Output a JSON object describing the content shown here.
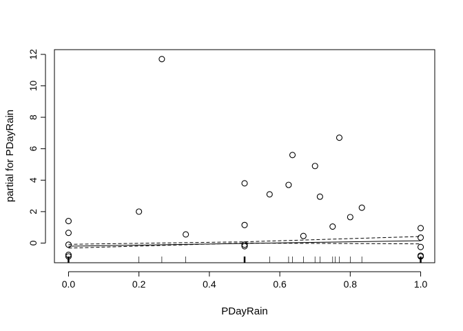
{
  "chart_data": {
    "type": "scatter",
    "title": "",
    "xlabel": "PDayRain",
    "ylabel": "partial for PDayRain",
    "xlim": [
      -0.04,
      1.04
    ],
    "ylim": [
      -1.25,
      12.3
    ],
    "xticks": [
      0.0,
      0.2,
      0.4,
      0.6,
      0.8,
      1.0
    ],
    "xtick_labels": [
      "0.0",
      "0.2",
      "0.4",
      "0.6",
      "0.8",
      "1.0"
    ],
    "yticks": [
      0,
      2,
      4,
      6,
      8,
      10,
      12
    ],
    "ytick_labels": [
      "0",
      "2",
      "4",
      "6",
      "8",
      "10",
      "12"
    ],
    "grid": false,
    "legend": "none",
    "points": [
      {
        "x": 0.0,
        "y": 1.4
      },
      {
        "x": 0.0,
        "y": 0.65
      },
      {
        "x": 0.0,
        "y": -0.1
      },
      {
        "x": 0.0,
        "y": -0.75
      },
      {
        "x": 0.0,
        "y": -0.85
      },
      {
        "x": 0.2,
        "y": 2.0
      },
      {
        "x": 0.265,
        "y": 11.7
      },
      {
        "x": 0.333,
        "y": 0.55
      },
      {
        "x": 0.5,
        "y": 3.8
      },
      {
        "x": 0.5,
        "y": 1.15
      },
      {
        "x": 0.5,
        "y": -0.1
      },
      {
        "x": 0.5,
        "y": -0.2
      },
      {
        "x": 0.571,
        "y": 3.1
      },
      {
        "x": 0.625,
        "y": 3.7
      },
      {
        "x": 0.636,
        "y": 5.6
      },
      {
        "x": 0.667,
        "y": 0.45
      },
      {
        "x": 0.7,
        "y": 4.9
      },
      {
        "x": 0.714,
        "y": 2.95
      },
      {
        "x": 0.75,
        "y": 1.05
      },
      {
        "x": 0.769,
        "y": 6.7
      },
      {
        "x": 0.8,
        "y": 1.65
      },
      {
        "x": 0.833,
        "y": 2.25
      },
      {
        "x": 1.0,
        "y": 0.95
      },
      {
        "x": 1.0,
        "y": 0.35
      },
      {
        "x": 1.0,
        "y": -0.25
      },
      {
        "x": 1.0,
        "y": -0.8
      },
      {
        "x": 1.0,
        "y": -0.85
      }
    ],
    "fit_line": {
      "x": [
        0.0,
        1.0
      ],
      "y": [
        -0.2,
        0.15
      ]
    },
    "ci_upper": {
      "x": [
        0.0,
        0.5,
        1.0
      ],
      "y": [
        -0.08,
        0.08,
        0.42
      ]
    },
    "ci_lower": {
      "x": [
        0.0,
        0.5,
        1.0
      ],
      "y": [
        -0.32,
        0.0,
        -0.05
      ]
    },
    "rug_x": [
      0.0,
      0.2,
      0.265,
      0.333,
      0.5,
      0.571,
      0.625,
      0.636,
      0.667,
      0.7,
      0.714,
      0.75,
      0.757,
      0.769,
      0.8,
      0.833,
      1.0
    ]
  }
}
